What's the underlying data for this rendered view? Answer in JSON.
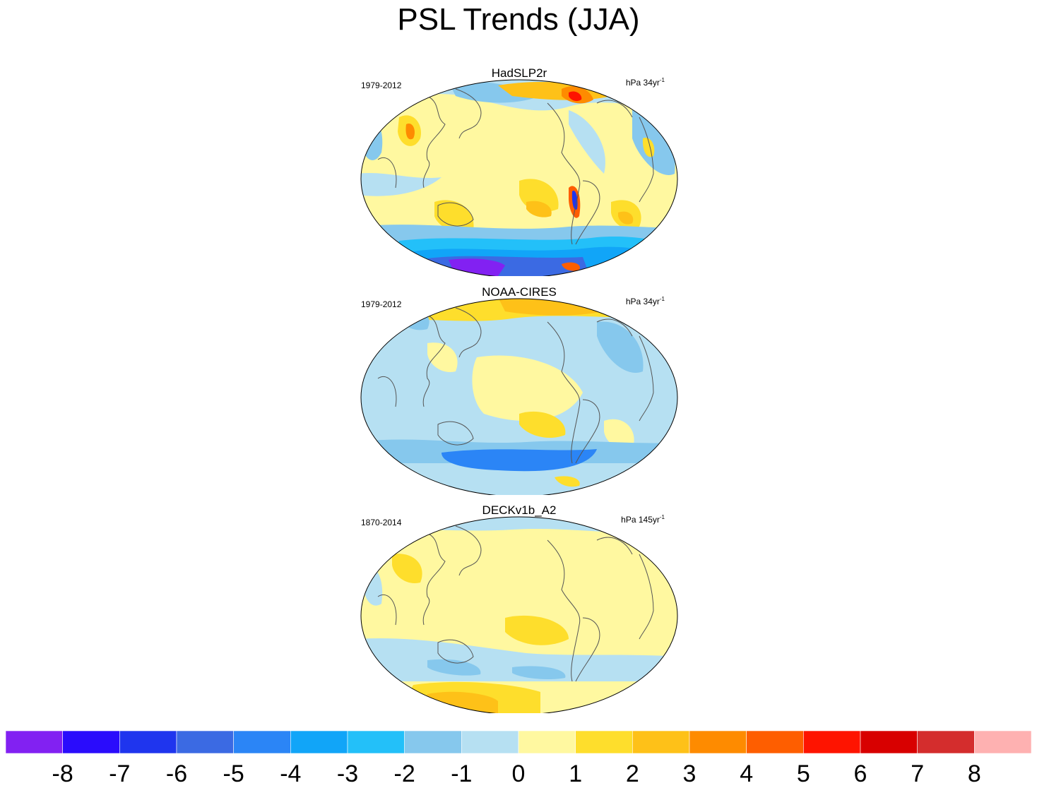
{
  "title": "PSL Trends (JJA)",
  "panels": [
    {
      "name": "HadSLP2r",
      "period": "1979-2012",
      "units_base": "hPa 34yr",
      "units_exp": "-1"
    },
    {
      "name": "NOAA-CIRES",
      "period": "1979-2012",
      "units_base": "hPa 34yr",
      "units_exp": "-1"
    },
    {
      "name": "DECKv1b_A2",
      "period": "1870-2014",
      "units_base": "hPa 145yr",
      "units_exp": "-1"
    }
  ],
  "colorbar": {
    "colors": [
      "#8221f2",
      "#2a0cfc",
      "#1f35ee",
      "#3b6ae3",
      "#2b85f6",
      "#11a5f8",
      "#23c0f9",
      "#86c8ed",
      "#b6e0f2",
      "#fff8a0",
      "#fede2c",
      "#fec118",
      "#fe8b00",
      "#fe5e00",
      "#fe1400",
      "#d80000",
      "#d42d2d",
      "#feb1b1"
    ],
    "labels": [
      "-8",
      "-7",
      "-6",
      "-5",
      "-4",
      "-3",
      "-2",
      "-1",
      "0",
      "1",
      "2",
      "3",
      "4",
      "5",
      "6",
      "7",
      "8"
    ]
  }
}
